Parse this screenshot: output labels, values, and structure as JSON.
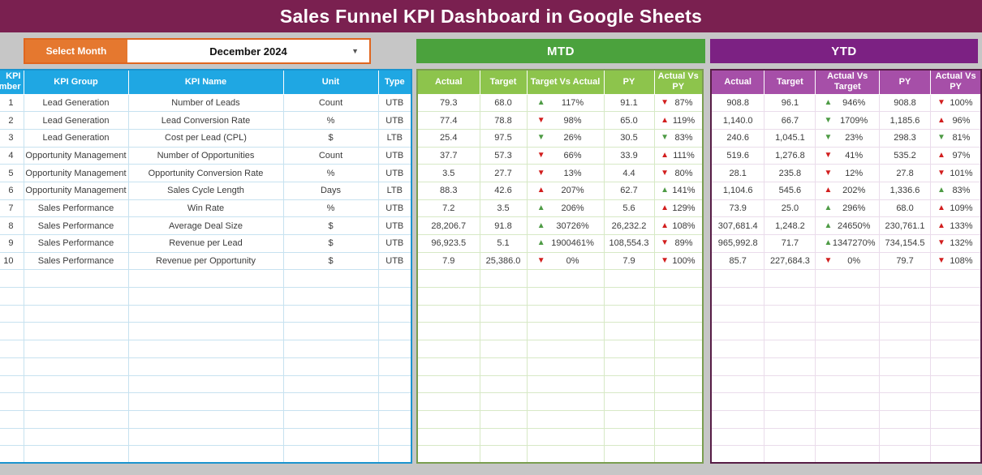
{
  "title": "Sales Funnel KPI Dashboard in Google Sheets",
  "month_selector": {
    "label": "Select Month",
    "value": "December 2024",
    "dropdown_icon": "caret-down"
  },
  "kpi_table": {
    "headers": [
      "KPI Number",
      "KPI Group",
      "KPI Name",
      "Unit",
      "Type"
    ]
  },
  "mtd": {
    "label": "MTD",
    "headers": [
      "Actual",
      "Target",
      "Target Vs Actual",
      "PY",
      "Actual Vs PY"
    ]
  },
  "ytd": {
    "label": "YTD",
    "headers": [
      "Actual",
      "Target",
      "Actual Vs Target",
      "PY",
      "Actual Vs PY"
    ]
  },
  "rows": [
    {
      "num": "1",
      "group": "Lead Generation",
      "name": "Number of Leads",
      "unit": "Count",
      "type": "UTB",
      "mtd": {
        "actual": "79.3",
        "target": "68.0",
        "tva": {
          "dir": "up",
          "color": "green",
          "value": "117%"
        },
        "py": "91.1",
        "avpy": {
          "dir": "down",
          "color": "red",
          "value": "87%"
        }
      },
      "ytd": {
        "actual": "908.8",
        "target": "96.1",
        "avt": {
          "dir": "up",
          "color": "green",
          "value": "946%"
        },
        "py": "908.8",
        "avpy": {
          "dir": "down",
          "color": "red",
          "value": "100%"
        }
      }
    },
    {
      "num": "2",
      "group": "Lead Generation",
      "name": "Lead Conversion Rate",
      "unit": "%",
      "type": "UTB",
      "mtd": {
        "actual": "77.4",
        "target": "78.8",
        "tva": {
          "dir": "down",
          "color": "red",
          "value": "98%"
        },
        "py": "65.0",
        "avpy": {
          "dir": "up",
          "color": "red",
          "value": "119%"
        }
      },
      "ytd": {
        "actual": "1,140.0",
        "target": "66.7",
        "avt": {
          "dir": "down",
          "color": "green",
          "value": "1709%"
        },
        "py": "1,185.6",
        "avpy": {
          "dir": "up",
          "color": "red",
          "value": "96%"
        }
      }
    },
    {
      "num": "3",
      "group": "Lead Generation",
      "name": "Cost per Lead (CPL)",
      "unit": "$",
      "type": "LTB",
      "mtd": {
        "actual": "25.4",
        "target": "97.5",
        "tva": {
          "dir": "down",
          "color": "green",
          "value": "26%"
        },
        "py": "30.5",
        "avpy": {
          "dir": "down",
          "color": "green",
          "value": "83%"
        }
      },
      "ytd": {
        "actual": "240.6",
        "target": "1,045.1",
        "avt": {
          "dir": "down",
          "color": "green",
          "value": "23%"
        },
        "py": "298.3",
        "avpy": {
          "dir": "down",
          "color": "green",
          "value": "81%"
        }
      }
    },
    {
      "num": "4",
      "group": "Opportunity Management",
      "name": "Number of Opportunities",
      "unit": "Count",
      "type": "UTB",
      "mtd": {
        "actual": "37.7",
        "target": "57.3",
        "tva": {
          "dir": "down",
          "color": "red",
          "value": "66%"
        },
        "py": "33.9",
        "avpy": {
          "dir": "up",
          "color": "red",
          "value": "111%"
        }
      },
      "ytd": {
        "actual": "519.6",
        "target": "1,276.8",
        "avt": {
          "dir": "down",
          "color": "red",
          "value": "41%"
        },
        "py": "535.2",
        "avpy": {
          "dir": "up",
          "color": "red",
          "value": "97%"
        }
      }
    },
    {
      "num": "5",
      "group": "Opportunity Management",
      "name": "Opportunity Conversion Rate",
      "unit": "%",
      "type": "UTB",
      "mtd": {
        "actual": "3.5",
        "target": "27.7",
        "tva": {
          "dir": "down",
          "color": "red",
          "value": "13%"
        },
        "py": "4.4",
        "avpy": {
          "dir": "down",
          "color": "red",
          "value": "80%"
        }
      },
      "ytd": {
        "actual": "28.1",
        "target": "235.8",
        "avt": {
          "dir": "down",
          "color": "red",
          "value": "12%"
        },
        "py": "27.8",
        "avpy": {
          "dir": "down",
          "color": "red",
          "value": "101%"
        }
      }
    },
    {
      "num": "6",
      "group": "Opportunity Management",
      "name": "Sales Cycle Length",
      "unit": "Days",
      "type": "LTB",
      "mtd": {
        "actual": "88.3",
        "target": "42.6",
        "tva": {
          "dir": "up",
          "color": "red",
          "value": "207%"
        },
        "py": "62.7",
        "avpy": {
          "dir": "up",
          "color": "green",
          "value": "141%"
        }
      },
      "ytd": {
        "actual": "1,104.6",
        "target": "545.6",
        "avt": {
          "dir": "up",
          "color": "red",
          "value": "202%"
        },
        "py": "1,336.6",
        "avpy": {
          "dir": "up",
          "color": "green",
          "value": "83%"
        }
      }
    },
    {
      "num": "7",
      "group": "Sales Performance",
      "name": "Win Rate",
      "unit": "%",
      "type": "UTB",
      "mtd": {
        "actual": "7.2",
        "target": "3.5",
        "tva": {
          "dir": "up",
          "color": "green",
          "value": "206%"
        },
        "py": "5.6",
        "avpy": {
          "dir": "up",
          "color": "red",
          "value": "129%"
        }
      },
      "ytd": {
        "actual": "73.9",
        "target": "25.0",
        "avt": {
          "dir": "up",
          "color": "green",
          "value": "296%"
        },
        "py": "68.0",
        "avpy": {
          "dir": "up",
          "color": "red",
          "value": "109%"
        }
      }
    },
    {
      "num": "8",
      "group": "Sales Performance",
      "name": "Average Deal Size",
      "unit": "$",
      "type": "UTB",
      "mtd": {
        "actual": "28,206.7",
        "target": "91.8",
        "tva": {
          "dir": "up",
          "color": "green",
          "value": "30726%"
        },
        "py": "26,232.2",
        "avpy": {
          "dir": "up",
          "color": "red",
          "value": "108%"
        }
      },
      "ytd": {
        "actual": "307,681.4",
        "target": "1,248.2",
        "avt": {
          "dir": "up",
          "color": "green",
          "value": "24650%"
        },
        "py": "230,761.1",
        "avpy": {
          "dir": "up",
          "color": "red",
          "value": "133%"
        }
      }
    },
    {
      "num": "9",
      "group": "Sales Performance",
      "name": "Revenue per Lead",
      "unit": "$",
      "type": "UTB",
      "mtd": {
        "actual": "96,923.5",
        "target": "5.1",
        "tva": {
          "dir": "up",
          "color": "green",
          "value": "1900461%"
        },
        "py": "108,554.3",
        "avpy": {
          "dir": "down",
          "color": "red",
          "value": "89%"
        }
      },
      "ytd": {
        "actual": "965,992.8",
        "target": "71.7",
        "avt": {
          "dir": "up",
          "color": "green",
          "value": "1347270%"
        },
        "py": "734,154.5",
        "avpy": {
          "dir": "down",
          "color": "red",
          "value": "132%"
        }
      }
    },
    {
      "num": "10",
      "group": "Sales Performance",
      "name": "Revenue per Opportunity",
      "unit": "$",
      "type": "UTB",
      "mtd": {
        "actual": "7.9",
        "target": "25,386.0",
        "tva": {
          "dir": "down",
          "color": "red",
          "value": "0%"
        },
        "py": "7.9",
        "avpy": {
          "dir": "down",
          "color": "red",
          "value": "100%"
        }
      },
      "ytd": {
        "actual": "85.7",
        "target": "227,684.3",
        "avt": {
          "dir": "down",
          "color": "red",
          "value": "0%"
        },
        "py": "79.7",
        "avpy": {
          "dir": "down",
          "color": "red",
          "value": "108%"
        }
      }
    }
  ],
  "empty_row_count": 11,
  "colors": {
    "banner": "#7A2050",
    "orange": "#E5782F",
    "blue_header": "#1FA7E3",
    "blue_border": "#1B94CE",
    "green_banner": "#4BA23D",
    "green_header": "#8DC44C",
    "green_border": "#7A9E50",
    "purple_banner": "#7C2183",
    "purple_header": "#A64FA8",
    "purple_border": "#571D46",
    "arrow_red": "#D21E1E",
    "arrow_green": "#4E9B45",
    "background": "#C6C6C6"
  }
}
